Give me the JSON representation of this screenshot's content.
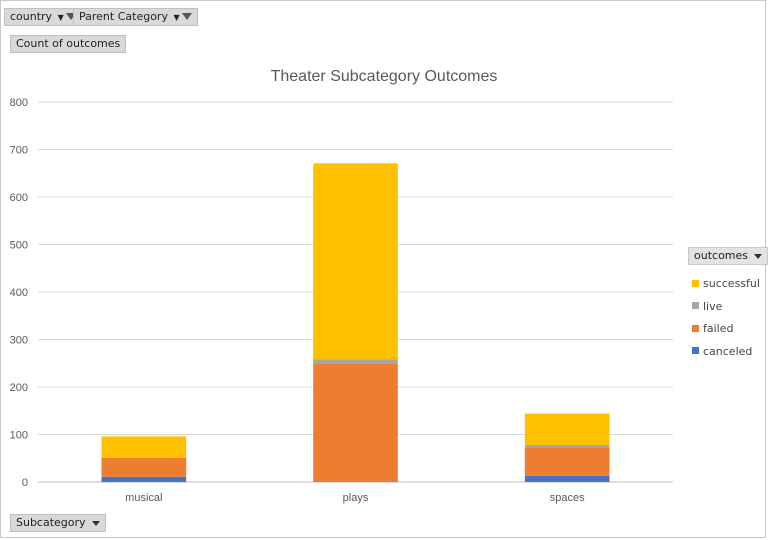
{
  "filters": [
    {
      "label": "country"
    },
    {
      "label": "Parent Category"
    }
  ],
  "value_button": {
    "label": "Count of outcomes"
  },
  "axis_button": {
    "label": "Subcategory"
  },
  "legend": {
    "title": "outcomes"
  },
  "colors": {
    "canceled": "#4472C4",
    "failed": "#ED7D31",
    "live": "#A5A5A5",
    "successful": "#FFC000"
  },
  "chart_data": {
    "type": "bar",
    "stacked": true,
    "title": "Theater Subcategory Outcomes",
    "xlabel": "",
    "ylabel": "",
    "categories": [
      "musical",
      "plays",
      "spaces"
    ],
    "ylim": [
      0,
      800
    ],
    "yticks": [
      0,
      100,
      200,
      300,
      400,
      500,
      600,
      700,
      800
    ],
    "grid": true,
    "legend_position": "right",
    "series": [
      {
        "name": "canceled",
        "values": [
          11,
          0,
          13
        ]
      },
      {
        "name": "failed",
        "values": [
          40,
          250,
          60
        ]
      },
      {
        "name": "live",
        "values": [
          0,
          8,
          5
        ]
      },
      {
        "name": "successful",
        "values": [
          45,
          413,
          66
        ]
      }
    ]
  }
}
